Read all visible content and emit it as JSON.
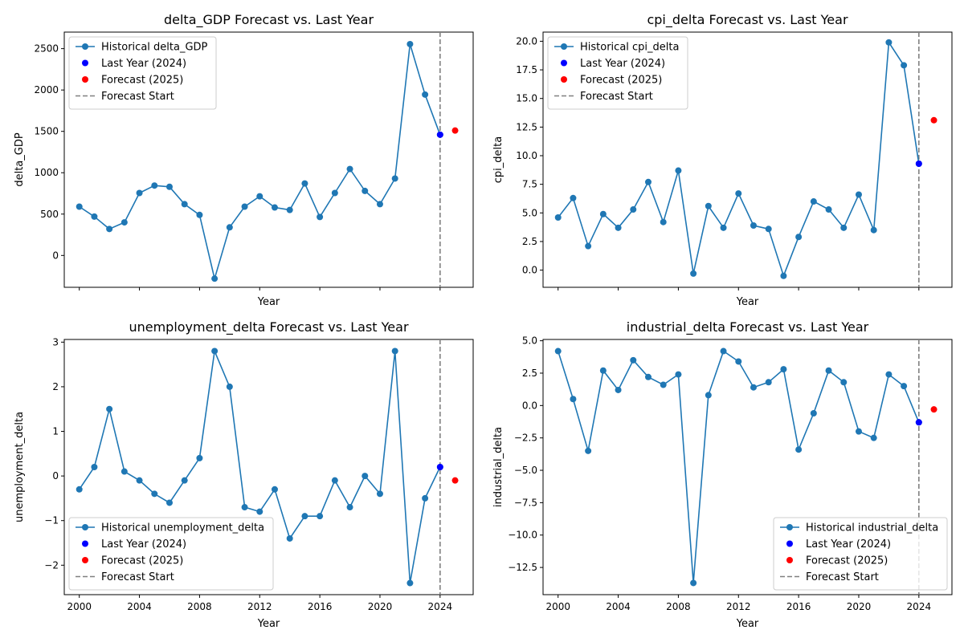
{
  "chart_data": [
    {
      "type": "line",
      "title": "delta_GDP Forecast vs. Last Year",
      "xlabel": "Year",
      "ylabel": "delta_GDP",
      "xlim": [
        1999,
        2026.2
      ],
      "ylim": [
        -385,
        2700
      ],
      "x_ticks": [
        2000,
        2004,
        2008,
        2012,
        2016,
        2020,
        2024
      ],
      "show_x_tick_labels": false,
      "y_ticks": [
        0,
        500,
        1000,
        1500,
        2000,
        2500
      ],
      "y_tick_labels": [
        "0",
        "500",
        "1000",
        "1500",
        "2000",
        "2500"
      ],
      "legend_position": "upper-left",
      "legend": [
        "Historical delta_GDP",
        "Last Year (2024)",
        "Forecast (2025)",
        "Forecast Start"
      ],
      "series": [
        {
          "name": "Historical delta_GDP",
          "x": [
            2000,
            2001,
            2002,
            2003,
            2004,
            2005,
            2006,
            2007,
            2008,
            2009,
            2010,
            2011,
            2012,
            2013,
            2014,
            2015,
            2016,
            2017,
            2018,
            2019,
            2020,
            2021,
            2022,
            2023,
            2024
          ],
          "values": [
            590,
            470,
            320,
            400,
            755,
            845,
            830,
            620,
            490,
            -280,
            340,
            590,
            715,
            580,
            550,
            870,
            465,
            755,
            1045,
            780,
            620,
            930,
            2555,
            1945,
            1460
          ]
        }
      ],
      "last_year": {
        "x": 2024,
        "y": 1460
      },
      "forecast": {
        "x": 2025,
        "y": 1510
      },
      "forecast_start_x": 2024
    },
    {
      "type": "line",
      "title": "cpi_delta Forecast vs. Last Year",
      "xlabel": "Year",
      "ylabel": "cpi_delta",
      "xlim": [
        1999,
        2026.2
      ],
      "ylim": [
        -1.5,
        20.8
      ],
      "x_ticks": [
        2000,
        2004,
        2008,
        2012,
        2016,
        2020,
        2024
      ],
      "show_x_tick_labels": false,
      "y_ticks": [
        0,
        2.5,
        5,
        7.5,
        10,
        12.5,
        15,
        17.5,
        20
      ],
      "y_tick_labels": [
        "0.0",
        "2.5",
        "5.0",
        "7.5",
        "10.0",
        "12.5",
        "15.0",
        "17.5",
        "20.0"
      ],
      "legend_position": "upper-left",
      "legend": [
        "Historical cpi_delta",
        "Last Year (2024)",
        "Forecast (2025)",
        "Forecast Start"
      ],
      "series": [
        {
          "name": "Historical cpi_delta",
          "x": [
            2000,
            2001,
            2002,
            2003,
            2004,
            2005,
            2006,
            2007,
            2008,
            2009,
            2010,
            2011,
            2012,
            2013,
            2014,
            2015,
            2016,
            2017,
            2018,
            2019,
            2020,
            2021,
            2022,
            2023,
            2024
          ],
          "values": [
            4.6,
            6.3,
            2.1,
            4.9,
            3.7,
            5.3,
            7.7,
            4.2,
            8.7,
            -0.3,
            5.6,
            3.7,
            6.7,
            3.9,
            3.6,
            -0.5,
            2.9,
            6.0,
            5.3,
            3.7,
            6.6,
            3.5,
            19.9,
            17.9,
            9.3
          ]
        }
      ],
      "last_year": {
        "x": 2024,
        "y": 9.3
      },
      "forecast": {
        "x": 2025,
        "y": 13.1
      },
      "forecast_start_x": 2024
    },
    {
      "type": "line",
      "title": "unemployment_delta Forecast vs. Last Year",
      "xlabel": "Year",
      "ylabel": "unemployment_delta",
      "xlim": [
        1999,
        2026.2
      ],
      "ylim": [
        -2.66,
        3.06
      ],
      "x_ticks": [
        2000,
        2004,
        2008,
        2012,
        2016,
        2020,
        2024
      ],
      "show_x_tick_labels": true,
      "x_tick_labels": [
        "2000",
        "2004",
        "2008",
        "2012",
        "2016",
        "2020",
        "2024"
      ],
      "y_ticks": [
        -2,
        -1,
        0,
        1,
        2,
        3
      ],
      "y_tick_labels": [
        "−2",
        "−1",
        "0",
        "1",
        "2",
        "3"
      ],
      "legend_position": "lower-left",
      "legend": [
        "Historical unemployment_delta",
        "Last Year (2024)",
        "Forecast (2025)",
        "Forecast Start"
      ],
      "series": [
        {
          "name": "Historical unemployment_delta",
          "x": [
            2000,
            2001,
            2002,
            2003,
            2004,
            2005,
            2006,
            2007,
            2008,
            2009,
            2010,
            2011,
            2012,
            2013,
            2014,
            2015,
            2016,
            2017,
            2018,
            2019,
            2020,
            2021,
            2022,
            2023,
            2024
          ],
          "values": [
            -0.3,
            0.2,
            1.5,
            0.1,
            -0.1,
            -0.4,
            -0.6,
            -0.1,
            0.4,
            2.8,
            2.0,
            -0.7,
            -0.8,
            -0.3,
            -1.4,
            -0.9,
            -0.9,
            -0.1,
            -0.7,
            0.0,
            -0.4,
            2.8,
            -2.4,
            -0.5,
            0.2
          ]
        }
      ],
      "last_year": {
        "x": 2024,
        "y": 0.2
      },
      "forecast": {
        "x": 2025,
        "y": -0.1
      },
      "forecast_start_x": 2024
    },
    {
      "type": "line",
      "title": "industrial_delta Forecast vs. Last Year",
      "xlabel": "Year",
      "ylabel": "industrial_delta",
      "xlim": [
        1999,
        2026.2
      ],
      "ylim": [
        -14.6,
        5.1
      ],
      "x_ticks": [
        2000,
        2004,
        2008,
        2012,
        2016,
        2020,
        2024
      ],
      "show_x_tick_labels": true,
      "x_tick_labels": [
        "2000",
        "2004",
        "2008",
        "2012",
        "2016",
        "2020",
        "2024"
      ],
      "y_ticks": [
        -12.5,
        -10,
        -7.5,
        -5,
        -2.5,
        0,
        2.5,
        5
      ],
      "y_tick_labels": [
        "−12.5",
        "−10.0",
        "−7.5",
        "−5.0",
        "−2.5",
        "0.0",
        "2.5",
        "5.0"
      ],
      "legend_position": "lower-right",
      "legend": [
        "Historical industrial_delta",
        "Last Year (2024)",
        "Forecast (2025)",
        "Forecast Start"
      ],
      "series": [
        {
          "name": "Historical industrial_delta",
          "x": [
            2000,
            2001,
            2002,
            2003,
            2004,
            2005,
            2006,
            2007,
            2008,
            2009,
            2010,
            2011,
            2012,
            2013,
            2014,
            2015,
            2016,
            2017,
            2018,
            2019,
            2020,
            2021,
            2022,
            2023,
            2024
          ],
          "values": [
            4.2,
            0.5,
            -3.5,
            2.7,
            1.2,
            3.5,
            2.2,
            1.6,
            2.4,
            -13.7,
            0.8,
            4.2,
            3.4,
            1.4,
            1.8,
            2.8,
            -3.4,
            -0.6,
            2.7,
            1.8,
            -2.0,
            -2.5,
            2.4,
            1.5,
            -1.3
          ]
        }
      ],
      "last_year": {
        "x": 2024,
        "y": -1.3
      },
      "forecast": {
        "x": 2025,
        "y": -0.3
      },
      "forecast_start_x": 2024
    }
  ],
  "colors": {
    "historical": "#1f77b4",
    "last_year": "#0000ff",
    "forecast": "#ff0000",
    "forecast_start": "#808080"
  }
}
